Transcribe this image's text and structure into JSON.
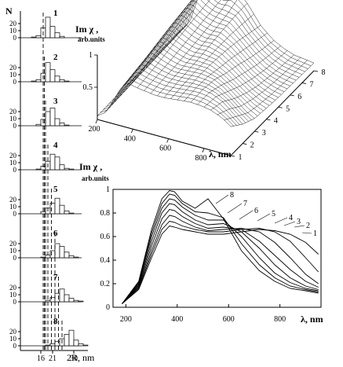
{
  "chart_data": [
    {
      "type": "bar",
      "panel": "size-distribution-histograms",
      "ylabel": "N",
      "xlabel": "2R, nm",
      "x_ticks": [
        "16",
        "21",
        "30"
      ],
      "y_ticks": [
        "0",
        "10",
        "20"
      ],
      "ylim": [
        0,
        30
      ],
      "bin_edges": [
        10,
        12,
        14,
        16,
        18,
        20,
        22,
        24,
        26,
        28,
        30,
        32,
        34,
        36
      ],
      "histograms": [
        {
          "label": "1",
          "dashed_line_x": 17,
          "counts": [
            0,
            1,
            3,
            14,
            29,
            16,
            7,
            2,
            0,
            0,
            0,
            0,
            0
          ]
        },
        {
          "label": "2",
          "dashed_line_x": 17.5,
          "counts": [
            0,
            1,
            3,
            12,
            27,
            17,
            8,
            3,
            1,
            0,
            0,
            0,
            0
          ]
        },
        {
          "label": "3",
          "dashed_line_x": 18,
          "counts": [
            0,
            0,
            2,
            9,
            20,
            25,
            10,
            4,
            1,
            0,
            0,
            0,
            0
          ]
        },
        {
          "label": "4",
          "dashed_line_x": 19,
          "counts": [
            0,
            0,
            1,
            5,
            12,
            22,
            18,
            7,
            2,
            1,
            0,
            0,
            0
          ]
        },
        {
          "label": "5",
          "dashed_line_x": 20.5,
          "counts": [
            0,
            0,
            0,
            3,
            8,
            15,
            22,
            12,
            4,
            1,
            0,
            0,
            0
          ]
        },
        {
          "label": "6",
          "dashed_line_x": 22,
          "counts": [
            0,
            0,
            0,
            1,
            4,
            10,
            20,
            16,
            8,
            3,
            1,
            0,
            0
          ]
        },
        {
          "label": "7",
          "dashed_line_x": 23.5,
          "counts": [
            0,
            0,
            0,
            0,
            2,
            6,
            12,
            18,
            10,
            5,
            2,
            1,
            0
          ]
        },
        {
          "label": "8",
          "dashed_line_x": 25,
          "counts": [
            0,
            0,
            0,
            0,
            1,
            3,
            6,
            10,
            16,
            22,
            8,
            3,
            1
          ]
        }
      ]
    },
    {
      "type": "surface",
      "panel": "3d-surface",
      "zlabel_line1": "Im χ ,",
      "zlabel_line2": "arb.units",
      "xlabel_symbol": "λ",
      "xlabel_unit": ", nm",
      "x_ticks": [
        "200",
        "400",
        "600",
        "800"
      ],
      "y_ticks": [
        "1",
        "2",
        "3",
        "4",
        "5",
        "6",
        "7",
        "8"
      ],
      "z_ticks": [
        "0.5",
        "1"
      ],
      "xlim": [
        200,
        950
      ],
      "ylim": [
        1,
        8
      ],
      "zlim": [
        0,
        1
      ]
    },
    {
      "type": "line",
      "panel": "spectra",
      "ylabel_line1": "Im χ ,",
      "ylabel_line2": "arb.units",
      "xlabel_symbol": "λ",
      "xlabel_unit": ", nm",
      "xlim": [
        150,
        960
      ],
      "ylim": [
        0,
        1.0
      ],
      "x_ticks": [
        200,
        400,
        600,
        800
      ],
      "y_ticks": [
        "0",
        "0.2",
        "0.4",
        "0.6",
        "0.8",
        "1"
      ],
      "series": [
        {
          "name": "1",
          "x": [
            185,
            250,
            300,
            340,
            370,
            390,
            420,
            470,
            520,
            580,
            650,
            720,
            780,
            840,
            900,
            950
          ],
          "y": [
            0.03,
            0.15,
            0.42,
            0.62,
            0.69,
            0.68,
            0.66,
            0.64,
            0.62,
            0.62,
            0.64,
            0.66,
            0.65,
            0.62,
            0.55,
            0.45
          ]
        },
        {
          "name": "2",
          "x": [
            185,
            250,
            300,
            340,
            370,
            390,
            420,
            470,
            520,
            580,
            650,
            720,
            780,
            840,
            900,
            950
          ],
          "y": [
            0.03,
            0.16,
            0.45,
            0.66,
            0.73,
            0.72,
            0.69,
            0.66,
            0.64,
            0.64,
            0.66,
            0.67,
            0.64,
            0.56,
            0.42,
            0.3
          ]
        },
        {
          "name": "3",
          "x": [
            185,
            250,
            300,
            340,
            370,
            390,
            420,
            470,
            520,
            580,
            650,
            720,
            780,
            840,
            900,
            950
          ],
          "y": [
            0.03,
            0.17,
            0.48,
            0.7,
            0.78,
            0.77,
            0.73,
            0.68,
            0.65,
            0.66,
            0.67,
            0.64,
            0.55,
            0.42,
            0.28,
            0.2
          ]
        },
        {
          "name": "4",
          "x": [
            185,
            250,
            300,
            340,
            370,
            390,
            420,
            470,
            520,
            580,
            650,
            720,
            780,
            840,
            900,
            950
          ],
          "y": [
            0.03,
            0.18,
            0.52,
            0.75,
            0.83,
            0.82,
            0.77,
            0.71,
            0.67,
            0.68,
            0.66,
            0.56,
            0.44,
            0.32,
            0.22,
            0.17
          ]
        },
        {
          "name": "5",
          "x": [
            185,
            250,
            300,
            340,
            370,
            390,
            420,
            470,
            520,
            580,
            650,
            720,
            780,
            840,
            900,
            950
          ],
          "y": [
            0.03,
            0.19,
            0.56,
            0.8,
            0.88,
            0.87,
            0.81,
            0.74,
            0.7,
            0.71,
            0.64,
            0.5,
            0.36,
            0.25,
            0.18,
            0.15
          ]
        },
        {
          "name": "6",
          "x": [
            185,
            250,
            300,
            340,
            370,
            390,
            420,
            470,
            520,
            580,
            650,
            720,
            780,
            840,
            900,
            950
          ],
          "y": [
            0.03,
            0.2,
            0.6,
            0.84,
            0.92,
            0.91,
            0.85,
            0.78,
            0.74,
            0.74,
            0.6,
            0.42,
            0.29,
            0.21,
            0.16,
            0.14
          ]
        },
        {
          "name": "7",
          "x": [
            185,
            250,
            300,
            340,
            370,
            390,
            420,
            470,
            520,
            580,
            650,
            720,
            780,
            840,
            900,
            950
          ],
          "y": [
            0.03,
            0.21,
            0.63,
            0.88,
            0.96,
            0.95,
            0.88,
            0.81,
            0.8,
            0.76,
            0.54,
            0.36,
            0.25,
            0.18,
            0.15,
            0.13
          ]
        },
        {
          "name": "8",
          "x": [
            185,
            250,
            300,
            340,
            370,
            390,
            420,
            470,
            520,
            580,
            650,
            720,
            780,
            840,
            900,
            950
          ],
          "y": [
            0.03,
            0.22,
            0.66,
            0.92,
            0.99,
            0.98,
            0.9,
            0.84,
            0.92,
            0.75,
            0.48,
            0.31,
            0.22,
            0.16,
            0.14,
            0.12
          ]
        }
      ]
    }
  ]
}
